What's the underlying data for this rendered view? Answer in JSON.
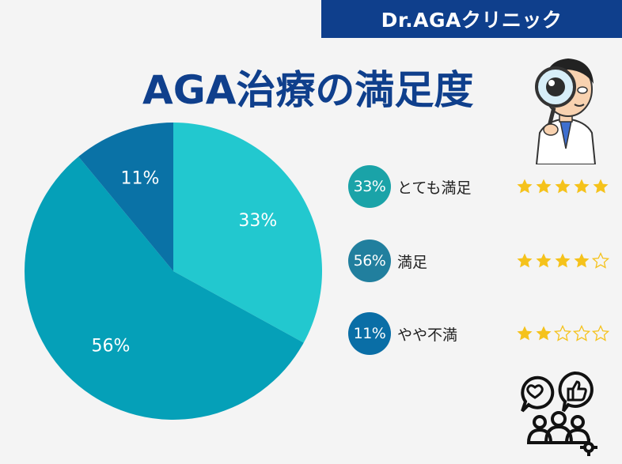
{
  "brand": {
    "name": "Dr.AGAクリニック"
  },
  "title": "AGA治療の満足度",
  "colors": {
    "brand": "#0f3f8c",
    "star_filled": "#f5c21b",
    "star_outline": "#f5c21b"
  },
  "icons": {
    "doctor": "doctor-with-magnifier-icon",
    "feedback": "people-feedback-icon"
  },
  "legend": [
    {
      "badge": "33%",
      "label": "とても満足",
      "stars": 5,
      "color": "#1aa3a8"
    },
    {
      "badge": "56%",
      "label": "満足",
      "stars": 4,
      "color": "#217f9e"
    },
    {
      "badge": "11%",
      "label": "やや不満",
      "stars": 2,
      "color": "#0a6ea6"
    }
  ],
  "chart_data": {
    "type": "pie",
    "categories": [
      "とても満足",
      "満足",
      "やや不満"
    ],
    "values": [
      33,
      56,
      11
    ],
    "labels": [
      "33%",
      "56%",
      "11%"
    ],
    "colors": [
      "#22c8cf",
      "#05a0b8",
      "#0a72a6"
    ],
    "start": "top",
    "direction": "clockwise"
  }
}
